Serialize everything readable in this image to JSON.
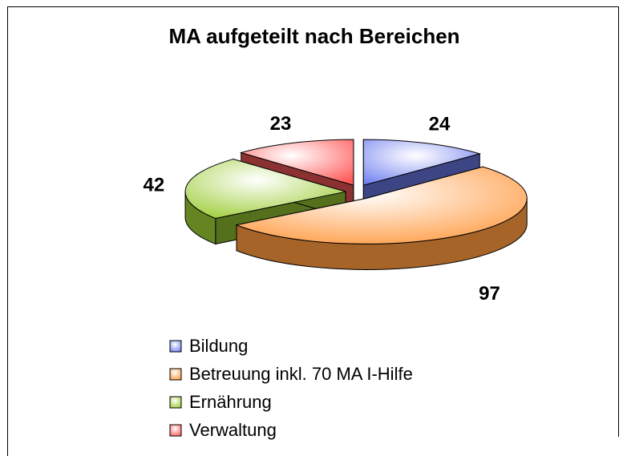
{
  "chart_data": {
    "type": "pie",
    "title": "MA aufgeteilt nach Bereichen",
    "categories": [
      "Bildung",
      "Betreuung inkl. 70 MA I-Hilfe",
      "Ernährung",
      "Verwaltung"
    ],
    "values": [
      24,
      97,
      42,
      23
    ],
    "colors": [
      "#6f7ff0",
      "#ff9a40",
      "#9acc33",
      "#ff5a5a"
    ],
    "legend": "bottom"
  }
}
